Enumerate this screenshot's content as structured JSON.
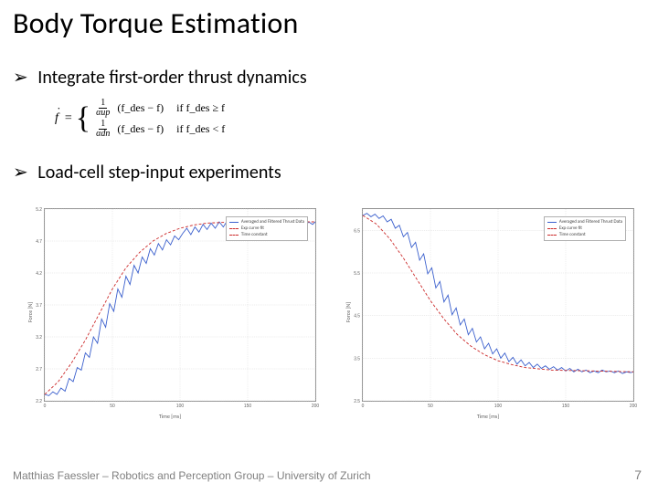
{
  "title": "Body Torque Estimation",
  "bullets": [
    "Integrate first-order thrust dynamics",
    "Load-cell step-input experiments"
  ],
  "equation": {
    "lhs": "f",
    "cases": [
      {
        "frac_num": "1",
        "frac_den": "αup",
        "paren": "(f_des − f)",
        "cond": "if f_des ≥ f"
      },
      {
        "frac_num": "1",
        "frac_den": "αdn",
        "paren": "(f_des − f)",
        "cond": "if f_des < f"
      }
    ]
  },
  "footer": "Matthias Faessler – Robotics and Perception Group – University of Zurich",
  "page_number": "7",
  "colors": {
    "measured": "#3a5fcd",
    "time_const": "#cc2a2a",
    "grid": "#d8d8d8",
    "axis": "#909090",
    "background": "#ffffff"
  },
  "charts": [
    {
      "type": "line",
      "xlabel": "Time [ms]",
      "ylabel": "Force [N]",
      "xlim": [
        0,
        200
      ],
      "xtick_step": 50,
      "ylim": [
        2.2,
        5.2
      ],
      "ytick_step": 0.5,
      "legend_items": [
        {
          "style": "measured",
          "color_key": "measured",
          "label": "Averaged and Filtered Thrust Data"
        },
        {
          "style": "dashed",
          "color_key": "time_const",
          "label": "Exp curve fit"
        },
        {
          "style": "dashed",
          "color_key": "time_const",
          "label": "Time constant"
        }
      ],
      "series": [
        {
          "kind": "measured",
          "color_key": "measured",
          "points": [
            [
              0,
              2.3
            ],
            [
              3,
              2.28
            ],
            [
              6,
              2.34
            ],
            [
              9,
              2.3
            ],
            [
              12,
              2.4
            ],
            [
              15,
              2.35
            ],
            [
              18,
              2.55
            ],
            [
              21,
              2.5
            ],
            [
              24,
              2.72
            ],
            [
              27,
              2.68
            ],
            [
              30,
              2.95
            ],
            [
              33,
              2.88
            ],
            [
              36,
              3.2
            ],
            [
              39,
              3.1
            ],
            [
              42,
              3.48
            ],
            [
              45,
              3.35
            ],
            [
              48,
              3.72
            ],
            [
              51,
              3.6
            ],
            [
              54,
              3.95
            ],
            [
              57,
              3.82
            ],
            [
              60,
              4.15
            ],
            [
              63,
              4.02
            ],
            [
              66,
              4.32
            ],
            [
              69,
              4.2
            ],
            [
              72,
              4.45
            ],
            [
              75,
              4.35
            ],
            [
              78,
              4.58
            ],
            [
              81,
              4.48
            ],
            [
              84,
              4.66
            ],
            [
              87,
              4.56
            ],
            [
              90,
              4.72
            ],
            [
              93,
              4.64
            ],
            [
              96,
              4.78
            ],
            [
              99,
              4.72
            ],
            [
              102,
              4.82
            ],
            [
              105,
              4.9
            ],
            [
              108,
              4.8
            ],
            [
              111,
              4.92
            ],
            [
              114,
              4.84
            ],
            [
              117,
              4.96
            ],
            [
              120,
              4.88
            ],
            [
              123,
              4.98
            ],
            [
              126,
              4.9
            ],
            [
              129,
              5.0
            ],
            [
              132,
              4.92
            ],
            [
              135,
              5.02
            ],
            [
              138,
              4.94
            ],
            [
              141,
              5.04
            ],
            [
              144,
              4.96
            ],
            [
              147,
              5.02
            ],
            [
              150,
              4.94
            ],
            [
              153,
              5.0
            ],
            [
              156,
              4.92
            ],
            [
              159,
              4.98
            ],
            [
              162,
              4.9
            ],
            [
              165,
              5.0
            ],
            [
              168,
              4.94
            ],
            [
              171,
              5.02
            ],
            [
              174,
              4.96
            ],
            [
              177,
              5.04
            ],
            [
              180,
              4.98
            ],
            [
              183,
              5.0
            ],
            [
              186,
              4.92
            ],
            [
              189,
              4.98
            ],
            [
              192,
              4.9
            ],
            [
              195,
              5.0
            ],
            [
              198,
              4.96
            ],
            [
              200,
              5.0
            ]
          ]
        },
        {
          "kind": "constant",
          "color_key": "time_const",
          "points": [
            [
              0,
              2.3
            ],
            [
              10,
              2.5
            ],
            [
              20,
              2.8
            ],
            [
              30,
              3.15
            ],
            [
              40,
              3.55
            ],
            [
              50,
              3.95
            ],
            [
              60,
              4.28
            ],
            [
              70,
              4.52
            ],
            [
              80,
              4.7
            ],
            [
              90,
              4.82
            ],
            [
              100,
              4.9
            ],
            [
              110,
              4.95
            ],
            [
              120,
              4.98
            ],
            [
              140,
              5.0
            ],
            [
              200,
              5.0
            ]
          ]
        }
      ]
    },
    {
      "type": "line",
      "xlabel": "Time [ms]",
      "ylabel": "Force [N]",
      "xlim": [
        0,
        200
      ],
      "xtick_step": 50,
      "ylim": [
        2.5,
        7.0
      ],
      "ytick_step": 1.0,
      "legend_items": [
        {
          "style": "measured",
          "color_key": "measured",
          "label": "Averaged and Filtered Thrust Data"
        },
        {
          "style": "dashed",
          "color_key": "time_const",
          "label": "Exp curve fit"
        },
        {
          "style": "dashed",
          "color_key": "time_const",
          "label": "Time constant"
        }
      ],
      "series": [
        {
          "kind": "measured",
          "color_key": "measured",
          "points": [
            [
              0,
              6.85
            ],
            [
              3,
              6.9
            ],
            [
              6,
              6.82
            ],
            [
              9,
              6.88
            ],
            [
              12,
              6.78
            ],
            [
              15,
              6.84
            ],
            [
              18,
              6.7
            ],
            [
              21,
              6.76
            ],
            [
              24,
              6.55
            ],
            [
              27,
              6.62
            ],
            [
              30,
              6.35
            ],
            [
              33,
              6.45
            ],
            [
              36,
              6.1
            ],
            [
              39,
              6.22
            ],
            [
              42,
              5.8
            ],
            [
              45,
              5.95
            ],
            [
              48,
              5.48
            ],
            [
              51,
              5.62
            ],
            [
              54,
              5.15
            ],
            [
              57,
              5.3
            ],
            [
              60,
              4.82
            ],
            [
              63,
              4.98
            ],
            [
              66,
              4.52
            ],
            [
              69,
              4.68
            ],
            [
              72,
              4.28
            ],
            [
              75,
              4.42
            ],
            [
              78,
              4.05
            ],
            [
              81,
              4.2
            ],
            [
              84,
              3.88
            ],
            [
              87,
              4.0
            ],
            [
              90,
              3.72
            ],
            [
              93,
              3.85
            ],
            [
              96,
              3.6
            ],
            [
              99,
              3.72
            ],
            [
              102,
              3.5
            ],
            [
              105,
              3.62
            ],
            [
              108,
              3.42
            ],
            [
              111,
              3.52
            ],
            [
              114,
              3.36
            ],
            [
              117,
              3.46
            ],
            [
              120,
              3.32
            ],
            [
              123,
              3.4
            ],
            [
              126,
              3.28
            ],
            [
              129,
              3.36
            ],
            [
              132,
              3.26
            ],
            [
              135,
              3.32
            ],
            [
              138,
              3.24
            ],
            [
              141,
              3.3
            ],
            [
              144,
              3.22
            ],
            [
              147,
              3.28
            ],
            [
              150,
              3.2
            ],
            [
              153,
              3.26
            ],
            [
              156,
              3.18
            ],
            [
              159,
              3.24
            ],
            [
              162,
              3.18
            ],
            [
              165,
              3.22
            ],
            [
              168,
              3.16
            ],
            [
              171,
              3.2
            ],
            [
              174,
              3.16
            ],
            [
              177,
              3.22
            ],
            [
              180,
              3.18
            ],
            [
              183,
              3.2
            ],
            [
              186,
              3.16
            ],
            [
              189,
              3.2
            ],
            [
              192,
              3.14
            ],
            [
              195,
              3.18
            ],
            [
              198,
              3.16
            ],
            [
              200,
              3.18
            ]
          ]
        },
        {
          "kind": "constant",
          "color_key": "time_const",
          "points": [
            [
              0,
              6.85
            ],
            [
              10,
              6.65
            ],
            [
              20,
              6.3
            ],
            [
              30,
              5.85
            ],
            [
              40,
              5.35
            ],
            [
              50,
              4.85
            ],
            [
              60,
              4.42
            ],
            [
              70,
              4.05
            ],
            [
              80,
              3.78
            ],
            [
              90,
              3.58
            ],
            [
              100,
              3.44
            ],
            [
              110,
              3.35
            ],
            [
              120,
              3.28
            ],
            [
              140,
              3.22
            ],
            [
              200,
              3.18
            ]
          ]
        }
      ]
    }
  ]
}
